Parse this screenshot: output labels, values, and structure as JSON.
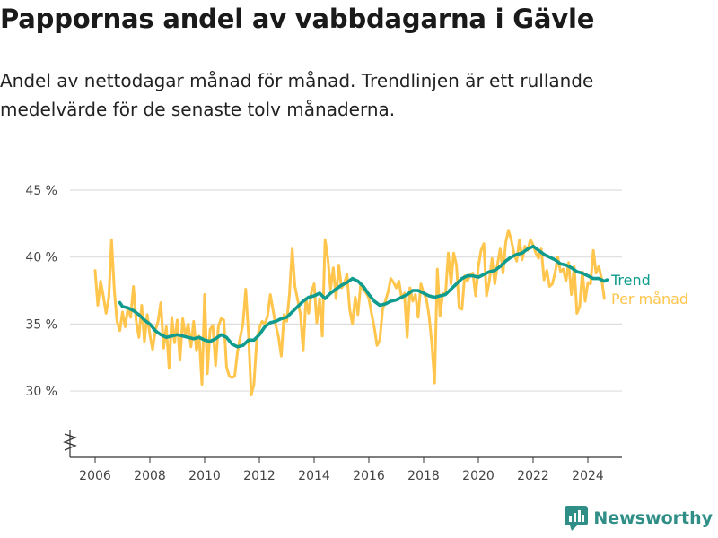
{
  "header": {
    "title": "Pappornas andel av vabbdagarna i Gävle",
    "subtitle": "Andel av nettodagar månad för månad. Trendlinjen är ett rullande medelvärde för de senaste tolv månaderna."
  },
  "brand": {
    "name": "Newsworthy",
    "icon": "newsworthy-logo-icon"
  },
  "colors": {
    "trend": "#0f9b8e",
    "monthly": "#ffc54d",
    "grid": "#dddddd",
    "axis": "#333333"
  },
  "chart_data": {
    "type": "line",
    "ylim": [
      25,
      45
    ],
    "y_ticks": [
      30,
      35,
      40,
      45
    ],
    "y_tick_labels": [
      "30 %",
      "35 %",
      "40 %",
      "45 %"
    ],
    "xlim": [
      2005.5,
      2025.2
    ],
    "x_ticks": [
      2006,
      2008,
      2010,
      2012,
      2014,
      2016,
      2018,
      2020,
      2022,
      2024
    ],
    "x_tick_labels": [
      "2006",
      "2008",
      "2010",
      "2012",
      "2014",
      "2016",
      "2018",
      "2020",
      "2022",
      "2024"
    ],
    "y_axis_break": true,
    "grid": true,
    "legend_position": "right",
    "series": [
      {
        "name": "Per månad",
        "color": "#ffc54d",
        "points": [
          [
            2006.0,
            39.0
          ],
          [
            2006.1,
            36.4
          ],
          [
            2006.2,
            38.2
          ],
          [
            2006.3,
            37.1
          ],
          [
            2006.4,
            35.8
          ],
          [
            2006.5,
            37.0
          ],
          [
            2006.6,
            41.3
          ],
          [
            2006.7,
            37.5
          ],
          [
            2006.8,
            35.2
          ],
          [
            2006.9,
            34.5
          ],
          [
            2007.0,
            35.9
          ],
          [
            2007.1,
            34.8
          ],
          [
            2007.2,
            36.2
          ],
          [
            2007.3,
            35.5
          ],
          [
            2007.4,
            37.8
          ],
          [
            2007.5,
            35.2
          ],
          [
            2007.6,
            34.0
          ],
          [
            2007.7,
            36.4
          ],
          [
            2007.8,
            33.7
          ],
          [
            2007.9,
            35.7
          ],
          [
            2008.0,
            34.2
          ],
          [
            2008.1,
            33.1
          ],
          [
            2008.2,
            34.5
          ],
          [
            2008.3,
            35.2
          ],
          [
            2008.4,
            36.6
          ],
          [
            2008.5,
            33.2
          ],
          [
            2008.6,
            34.8
          ],
          [
            2008.7,
            31.7
          ],
          [
            2008.8,
            35.5
          ],
          [
            2008.9,
            33.6
          ],
          [
            2009.0,
            35.3
          ],
          [
            2009.1,
            32.3
          ],
          [
            2009.2,
            35.4
          ],
          [
            2009.3,
            34.1
          ],
          [
            2009.4,
            35.0
          ],
          [
            2009.5,
            33.3
          ],
          [
            2009.6,
            35.2
          ],
          [
            2009.7,
            33.0
          ],
          [
            2009.8,
            34.1
          ],
          [
            2009.9,
            30.5
          ],
          [
            2010.0,
            37.2
          ],
          [
            2010.1,
            31.3
          ],
          [
            2010.2,
            34.6
          ],
          [
            2010.3,
            34.9
          ],
          [
            2010.4,
            31.9
          ],
          [
            2010.5,
            34.8
          ],
          [
            2010.6,
            35.4
          ],
          [
            2010.7,
            35.3
          ],
          [
            2010.8,
            31.8
          ],
          [
            2010.9,
            31.1
          ],
          [
            2011.0,
            31.0
          ],
          [
            2011.1,
            31.1
          ],
          [
            2011.2,
            32.9
          ],
          [
            2011.3,
            34.0
          ],
          [
            2011.4,
            35.0
          ],
          [
            2011.5,
            37.6
          ],
          [
            2011.6,
            34.3
          ],
          [
            2011.7,
            29.7
          ],
          [
            2011.8,
            30.5
          ],
          [
            2011.9,
            33.7
          ],
          [
            2012.0,
            34.7
          ],
          [
            2012.1,
            35.2
          ],
          [
            2012.2,
            35.0
          ],
          [
            2012.3,
            35.6
          ],
          [
            2012.4,
            37.2
          ],
          [
            2012.5,
            36.0
          ],
          [
            2012.6,
            34.9
          ],
          [
            2012.7,
            34.0
          ],
          [
            2012.8,
            32.6
          ],
          [
            2012.9,
            35.7
          ],
          [
            2013.0,
            35.2
          ],
          [
            2013.1,
            37.2
          ],
          [
            2013.2,
            40.6
          ],
          [
            2013.3,
            37.8
          ],
          [
            2013.4,
            36.8
          ],
          [
            2013.5,
            35.7
          ],
          [
            2013.6,
            33.0
          ],
          [
            2013.7,
            36.9
          ],
          [
            2013.8,
            35.8
          ],
          [
            2013.9,
            37.4
          ],
          [
            2014.0,
            38.0
          ],
          [
            2014.1,
            35.1
          ],
          [
            2014.2,
            36.9
          ],
          [
            2014.3,
            34.1
          ],
          [
            2014.4,
            41.3
          ],
          [
            2014.5,
            39.9
          ],
          [
            2014.6,
            37.6
          ],
          [
            2014.7,
            39.2
          ],
          [
            2014.8,
            36.9
          ],
          [
            2014.9,
            39.4
          ],
          [
            2015.0,
            37.7
          ],
          [
            2015.1,
            38.0
          ],
          [
            2015.2,
            38.7
          ],
          [
            2015.3,
            36.1
          ],
          [
            2015.4,
            35.0
          ],
          [
            2015.5,
            37.0
          ],
          [
            2015.6,
            35.7
          ],
          [
            2015.7,
            38.0
          ],
          [
            2015.8,
            37.6
          ],
          [
            2015.9,
            37.3
          ],
          [
            2016.0,
            36.9
          ],
          [
            2016.1,
            35.8
          ],
          [
            2016.2,
            34.7
          ],
          [
            2016.3,
            33.4
          ],
          [
            2016.4,
            33.8
          ],
          [
            2016.5,
            36.1
          ],
          [
            2016.6,
            36.7
          ],
          [
            2016.7,
            37.4
          ],
          [
            2016.8,
            38.4
          ],
          [
            2016.9,
            38.1
          ],
          [
            2017.0,
            37.7
          ],
          [
            2017.1,
            38.2
          ],
          [
            2017.2,
            36.9
          ],
          [
            2017.3,
            37.3
          ],
          [
            2017.4,
            34.0
          ],
          [
            2017.5,
            37.7
          ],
          [
            2017.6,
            36.7
          ],
          [
            2017.7,
            37.2
          ],
          [
            2017.8,
            35.5
          ],
          [
            2017.9,
            38.0
          ],
          [
            2018.0,
            37.3
          ],
          [
            2018.1,
            36.9
          ],
          [
            2018.2,
            35.6
          ],
          [
            2018.3,
            33.6
          ],
          [
            2018.4,
            30.6
          ],
          [
            2018.5,
            39.1
          ],
          [
            2018.6,
            35.6
          ],
          [
            2018.7,
            37.3
          ],
          [
            2018.8,
            37.2
          ],
          [
            2018.9,
            40.3
          ],
          [
            2019.0,
            38.0
          ],
          [
            2019.1,
            40.3
          ],
          [
            2019.2,
            39.4
          ],
          [
            2019.3,
            36.2
          ],
          [
            2019.4,
            36.1
          ],
          [
            2019.5,
            38.6
          ],
          [
            2019.6,
            38.2
          ],
          [
            2019.7,
            38.7
          ],
          [
            2019.8,
            38.8
          ],
          [
            2019.9,
            37.1
          ],
          [
            2020.0,
            39.3
          ],
          [
            2020.1,
            40.5
          ],
          [
            2020.2,
            41.0
          ],
          [
            2020.3,
            37.1
          ],
          [
            2020.4,
            38.2
          ],
          [
            2020.5,
            39.9
          ],
          [
            2020.6,
            38.0
          ],
          [
            2020.7,
            39.5
          ],
          [
            2020.8,
            40.6
          ],
          [
            2020.9,
            38.8
          ],
          [
            2021.0,
            41.1
          ],
          [
            2021.1,
            42.0
          ],
          [
            2021.2,
            41.3
          ],
          [
            2021.3,
            40.3
          ],
          [
            2021.4,
            39.7
          ],
          [
            2021.5,
            41.3
          ],
          [
            2021.6,
            39.8
          ],
          [
            2021.7,
            40.8
          ],
          [
            2021.8,
            40.5
          ],
          [
            2021.9,
            41.3
          ],
          [
            2022.0,
            40.9
          ],
          [
            2022.1,
            40.3
          ],
          [
            2022.2,
            39.9
          ],
          [
            2022.3,
            40.6
          ],
          [
            2022.4,
            38.3
          ],
          [
            2022.5,
            39.0
          ],
          [
            2022.6,
            37.8
          ],
          [
            2022.7,
            38.0
          ],
          [
            2022.8,
            38.8
          ],
          [
            2022.9,
            40.0
          ],
          [
            2023.0,
            38.9
          ],
          [
            2023.1,
            39.1
          ],
          [
            2023.2,
            38.2
          ],
          [
            2023.3,
            39.6
          ],
          [
            2023.4,
            37.2
          ],
          [
            2023.5,
            39.3
          ],
          [
            2023.6,
            35.8
          ],
          [
            2023.7,
            36.3
          ],
          [
            2023.8,
            38.9
          ],
          [
            2023.9,
            36.7
          ],
          [
            2024.0,
            38.1
          ],
          [
            2024.1,
            38.0
          ],
          [
            2024.2,
            40.5
          ],
          [
            2024.3,
            38.8
          ],
          [
            2024.4,
            39.3
          ],
          [
            2024.5,
            38.4
          ],
          [
            2024.6,
            36.9
          ]
        ]
      },
      {
        "name": "Trend",
        "color": "#0f9b8e",
        "points": [
          [
            2006.9,
            36.6
          ],
          [
            2007.0,
            36.3
          ],
          [
            2007.2,
            36.2
          ],
          [
            2007.4,
            36.0
          ],
          [
            2007.6,
            35.7
          ],
          [
            2007.8,
            35.3
          ],
          [
            2008.0,
            35.0
          ],
          [
            2008.2,
            34.5
          ],
          [
            2008.4,
            34.2
          ],
          [
            2008.6,
            34.0
          ],
          [
            2008.8,
            34.1
          ],
          [
            2009.0,
            34.2
          ],
          [
            2009.2,
            34.1
          ],
          [
            2009.4,
            34.0
          ],
          [
            2009.6,
            33.9
          ],
          [
            2009.8,
            34.0
          ],
          [
            2010.0,
            33.8
          ],
          [
            2010.2,
            33.7
          ],
          [
            2010.4,
            33.9
          ],
          [
            2010.6,
            34.2
          ],
          [
            2010.8,
            34.0
          ],
          [
            2011.0,
            33.5
          ],
          [
            2011.2,
            33.3
          ],
          [
            2011.4,
            33.4
          ],
          [
            2011.6,
            33.8
          ],
          [
            2011.8,
            33.8
          ],
          [
            2012.0,
            34.2
          ],
          [
            2012.2,
            34.8
          ],
          [
            2012.4,
            35.1
          ],
          [
            2012.6,
            35.2
          ],
          [
            2012.8,
            35.4
          ],
          [
            2013.0,
            35.5
          ],
          [
            2013.2,
            35.9
          ],
          [
            2013.4,
            36.3
          ],
          [
            2013.6,
            36.7
          ],
          [
            2013.8,
            37.0
          ],
          [
            2014.0,
            37.1
          ],
          [
            2014.2,
            37.3
          ],
          [
            2014.4,
            36.9
          ],
          [
            2014.6,
            37.3
          ],
          [
            2014.8,
            37.6
          ],
          [
            2015.0,
            37.9
          ],
          [
            2015.2,
            38.1
          ],
          [
            2015.4,
            38.4
          ],
          [
            2015.6,
            38.2
          ],
          [
            2015.8,
            37.8
          ],
          [
            2016.0,
            37.2
          ],
          [
            2016.2,
            36.7
          ],
          [
            2016.4,
            36.4
          ],
          [
            2016.6,
            36.5
          ],
          [
            2016.8,
            36.7
          ],
          [
            2017.0,
            36.8
          ],
          [
            2017.2,
            37.0
          ],
          [
            2017.4,
            37.2
          ],
          [
            2017.6,
            37.5
          ],
          [
            2017.8,
            37.5
          ],
          [
            2018.0,
            37.3
          ],
          [
            2018.2,
            37.1
          ],
          [
            2018.4,
            37.0
          ],
          [
            2018.6,
            37.1
          ],
          [
            2018.8,
            37.2
          ],
          [
            2019.0,
            37.6
          ],
          [
            2019.2,
            38.0
          ],
          [
            2019.4,
            38.4
          ],
          [
            2019.6,
            38.6
          ],
          [
            2019.8,
            38.6
          ],
          [
            2020.0,
            38.5
          ],
          [
            2020.2,
            38.7
          ],
          [
            2020.4,
            38.9
          ],
          [
            2020.6,
            39.0
          ],
          [
            2020.8,
            39.3
          ],
          [
            2021.0,
            39.7
          ],
          [
            2021.2,
            40.0
          ],
          [
            2021.4,
            40.2
          ],
          [
            2021.6,
            40.3
          ],
          [
            2021.8,
            40.6
          ],
          [
            2022.0,
            40.8
          ],
          [
            2022.2,
            40.5
          ],
          [
            2022.4,
            40.2
          ],
          [
            2022.6,
            40.0
          ],
          [
            2022.8,
            39.8
          ],
          [
            2023.0,
            39.5
          ],
          [
            2023.2,
            39.4
          ],
          [
            2023.4,
            39.2
          ],
          [
            2023.6,
            38.9
          ],
          [
            2023.8,
            38.8
          ],
          [
            2024.0,
            38.6
          ],
          [
            2024.2,
            38.4
          ],
          [
            2024.4,
            38.4
          ],
          [
            2024.6,
            38.2
          ],
          [
            2024.7,
            38.3
          ]
        ]
      }
    ]
  }
}
